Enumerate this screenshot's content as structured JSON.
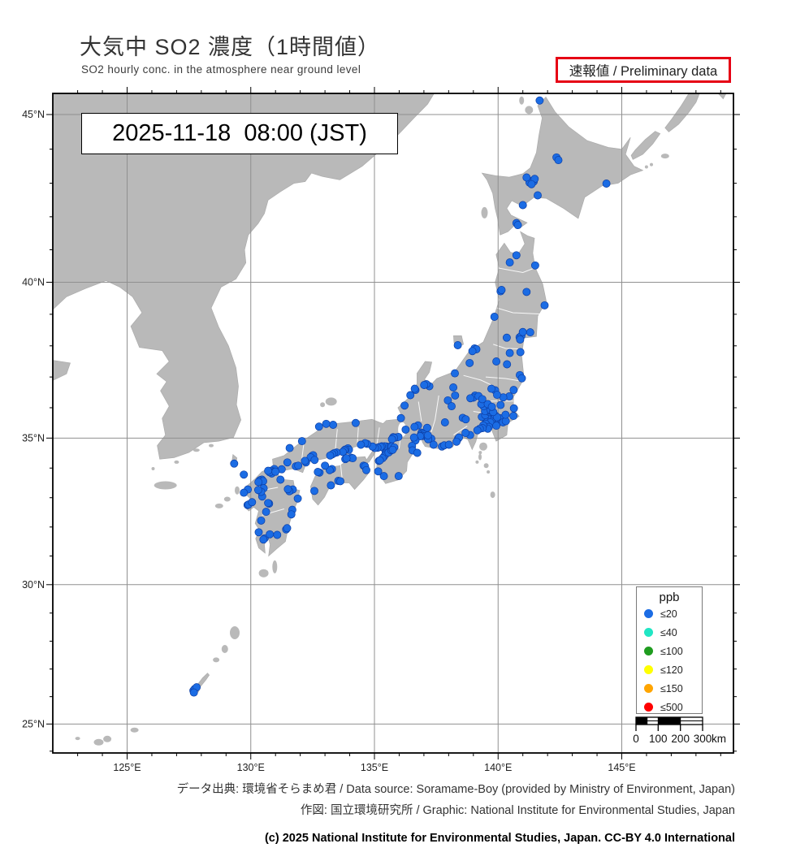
{
  "header": {
    "title_jp": "大気中 SO2 濃度（1時間値）",
    "subtitle_en": "SO2 hourly conc. in the atmosphere near ground level",
    "preliminary_label": "速報値 / Preliminary data"
  },
  "map": {
    "timestamp": "2025-11-18  08:00 (JST)",
    "axes": {
      "lat_ticks": [
        "45°N",
        "40°N",
        "35°N",
        "30°N",
        "25°N"
      ],
      "lat_values": [
        45,
        40,
        35,
        30,
        25
      ],
      "lon_ticks": [
        "125°E",
        "130°E",
        "135°E",
        "140°E",
        "145°E"
      ],
      "lon_values": [
        125,
        130,
        135,
        140,
        145
      ]
    }
  },
  "legend": {
    "title": "ppb",
    "items": [
      {
        "label": "≤20",
        "color": "#1b6ce4"
      },
      {
        "label": "≤40",
        "color": "#20e6c4"
      },
      {
        "label": "≤100",
        "color": "#1f9c1f"
      },
      {
        "label": "≤120",
        "color": "#ffff00"
      },
      {
        "label": "≤150",
        "color": "#ffa500"
      },
      {
        "label": "≤500",
        "color": "#ff0000"
      }
    ]
  },
  "scalebar": {
    "ticks": [
      "0",
      "100",
      "200",
      "300"
    ],
    "unit": "km"
  },
  "footer": {
    "source_line": "データ出典: 環境省そらまめ君 / Data source: Soramame-Boy (provided by Ministry of Environment, Japan)",
    "graphic_line": "作図: 国立環境研究所 / Graphic: National Institute for Environmental Studies, Japan",
    "copyright_line": "(c) 2025 National Institute for Environmental Studies, Japan. CC-BY 4.0 International"
  },
  "chart_data": {
    "type": "scatter",
    "title": "大気中 SO2 濃度（1時間値） / SO2 hourly conc. in the atmosphere near ground level",
    "timestamp": "2025-11-18 08:00 (JST)",
    "units": "ppb",
    "lon_range": [
      122.0,
      149.5
    ],
    "lat_range": [
      24.0,
      45.6
    ],
    "projection": "mercator",
    "legend_bins": [
      {
        "label": "≤20",
        "color": "#1b6ce4"
      },
      {
        "label": "≤40",
        "color": "#20e6c4"
      },
      {
        "label": "≤100",
        "color": "#1f9c1f"
      },
      {
        "label": "≤120",
        "color": "#ffff00"
      },
      {
        "label": "≤150",
        "color": "#ffa500"
      },
      {
        "label": "≤500",
        "color": "#ff0000"
      }
    ],
    "note": "All plotted stations fall in the ≤20 ppb class (blue dots).",
    "stations_lonlat": [
      [
        141.68,
        45.4
      ],
      [
        142.36,
        43.76
      ],
      [
        142.44,
        43.68
      ],
      [
        141.35,
        43.07
      ],
      [
        141.44,
        43.05
      ],
      [
        141.27,
        43.02
      ],
      [
        141.48,
        43.13
      ],
      [
        141.35,
        42.97
      ],
      [
        141.6,
        42.64
      ],
      [
        141.0,
        42.35
      ],
      [
        144.38,
        42.99
      ],
      [
        140.74,
        41.81
      ],
      [
        140.8,
        41.75
      ],
      [
        141.15,
        43.17
      ],
      [
        140.74,
        40.83
      ],
      [
        141.5,
        40.52
      ],
      [
        140.47,
        40.61
      ],
      [
        140.1,
        39.72
      ],
      [
        140.14,
        39.76
      ],
      [
        141.15,
        39.7
      ],
      [
        141.88,
        39.28
      ],
      [
        140.87,
        38.27
      ],
      [
        140.94,
        38.32
      ],
      [
        140.89,
        38.2
      ],
      [
        141.3,
        38.43
      ],
      [
        141.0,
        38.44
      ],
      [
        140.35,
        38.26
      ],
      [
        139.85,
        38.92
      ],
      [
        140.47,
        37.77
      ],
      [
        140.36,
        37.41
      ],
      [
        140.88,
        37.06
      ],
      [
        140.96,
        36.96
      ],
      [
        139.93,
        37.5
      ],
      [
        140.9,
        37.8
      ],
      [
        139.05,
        37.92
      ],
      [
        139.12,
        37.89
      ],
      [
        138.96,
        37.83
      ],
      [
        138.85,
        37.45
      ],
      [
        138.25,
        37.12
      ],
      [
        138.37,
        38.02
      ],
      [
        137.22,
        36.7
      ],
      [
        137.1,
        36.77
      ],
      [
        137.01,
        36.74
      ],
      [
        136.66,
        36.58
      ],
      [
        136.63,
        36.62
      ],
      [
        136.45,
        36.41
      ],
      [
        136.22,
        36.07
      ],
      [
        136.07,
        35.66
      ],
      [
        139.7,
        35.69
      ],
      [
        139.75,
        35.71
      ],
      [
        139.8,
        35.66
      ],
      [
        139.65,
        35.73
      ],
      [
        139.7,
        35.76
      ],
      [
        139.78,
        35.61
      ],
      [
        139.84,
        35.71
      ],
      [
        139.62,
        35.66
      ],
      [
        139.73,
        35.58
      ],
      [
        139.88,
        35.75
      ],
      [
        139.55,
        35.7
      ],
      [
        139.45,
        35.66
      ],
      [
        139.34,
        35.7
      ],
      [
        139.48,
        35.76
      ],
      [
        139.64,
        35.45
      ],
      [
        139.55,
        35.42
      ],
      [
        139.68,
        35.52
      ],
      [
        139.5,
        35.47
      ],
      [
        139.63,
        35.37
      ],
      [
        139.58,
        35.31
      ],
      [
        139.4,
        35.42
      ],
      [
        139.37,
        35.33
      ],
      [
        139.26,
        35.31
      ],
      [
        139.16,
        35.26
      ],
      [
        140.1,
        35.6
      ],
      [
        140.13,
        35.54
      ],
      [
        140.03,
        35.58
      ],
      [
        140.06,
        35.66
      ],
      [
        139.96,
        35.69
      ],
      [
        140.2,
        35.52
      ],
      [
        139.93,
        35.41
      ],
      [
        140.31,
        35.56
      ],
      [
        140.3,
        35.77
      ],
      [
        140.62,
        35.73
      ],
      [
        139.65,
        35.86
      ],
      [
        139.6,
        35.91
      ],
      [
        139.53,
        35.95
      ],
      [
        139.47,
        35.89
      ],
      [
        139.7,
        35.92
      ],
      [
        139.8,
        35.86
      ],
      [
        139.41,
        36.05
      ],
      [
        139.32,
        36.12
      ],
      [
        139.58,
        36.12
      ],
      [
        139.75,
        36.03
      ],
      [
        140.45,
        36.37
      ],
      [
        140.63,
        36.58
      ],
      [
        140.1,
        36.09
      ],
      [
        140.64,
        35.98
      ],
      [
        140.21,
        36.34
      ],
      [
        139.88,
        36.57
      ],
      [
        139.73,
        36.62
      ],
      [
        139.96,
        36.42
      ],
      [
        139.07,
        36.4
      ],
      [
        139.0,
        36.33
      ],
      [
        138.88,
        36.31
      ],
      [
        139.21,
        36.38
      ],
      [
        139.36,
        36.28
      ],
      [
        138.57,
        35.67
      ],
      [
        138.69,
        35.62
      ],
      [
        138.19,
        36.66
      ],
      [
        137.97,
        36.24
      ],
      [
        138.26,
        36.4
      ],
      [
        138.12,
        36.05
      ],
      [
        137.85,
        35.52
      ],
      [
        138.87,
        35.1
      ],
      [
        138.68,
        35.17
      ],
      [
        138.38,
        34.98
      ],
      [
        138.42,
        35.02
      ],
      [
        138.32,
        34.88
      ],
      [
        137.73,
        34.72
      ],
      [
        137.82,
        34.76
      ],
      [
        138.01,
        34.78
      ],
      [
        136.9,
        35.18
      ],
      [
        136.95,
        35.16
      ],
      [
        136.88,
        35.11
      ],
      [
        137.0,
        35.12
      ],
      [
        136.93,
        35.07
      ],
      [
        137.05,
        35.06
      ],
      [
        136.85,
        35.06
      ],
      [
        137.15,
        35.02
      ],
      [
        137.3,
        34.98
      ],
      [
        137.39,
        34.78
      ],
      [
        137.17,
        34.96
      ],
      [
        137.16,
        35.09
      ],
      [
        136.76,
        35.42
      ],
      [
        136.62,
        35.37
      ],
      [
        137.13,
        35.34
      ],
      [
        136.63,
        34.97
      ],
      [
        136.66,
        34.92
      ],
      [
        136.6,
        35.02
      ],
      [
        136.52,
        34.74
      ],
      [
        136.54,
        34.59
      ],
      [
        136.73,
        34.51
      ],
      [
        135.87,
        35.02
      ],
      [
        136.26,
        35.28
      ],
      [
        135.97,
        35.04
      ],
      [
        135.76,
        35.03
      ],
      [
        135.79,
        35.01
      ],
      [
        135.71,
        34.96
      ],
      [
        135.5,
        34.69
      ],
      [
        135.52,
        34.66
      ],
      [
        135.46,
        34.66
      ],
      [
        135.55,
        34.61
      ],
      [
        135.6,
        34.63
      ],
      [
        135.48,
        34.72
      ],
      [
        135.43,
        34.61
      ],
      [
        135.58,
        34.69
      ],
      [
        135.5,
        34.56
      ],
      [
        135.46,
        34.51
      ],
      [
        135.62,
        34.56
      ],
      [
        135.41,
        34.73
      ],
      [
        135.65,
        34.73
      ],
      [
        135.44,
        34.45
      ],
      [
        135.38,
        34.38
      ],
      [
        135.33,
        34.33
      ],
      [
        135.57,
        34.52
      ],
      [
        135.68,
        34.6
      ],
      [
        135.7,
        34.72
      ],
      [
        135.19,
        34.7
      ],
      [
        135.3,
        34.73
      ],
      [
        135.25,
        34.71
      ],
      [
        135.12,
        34.68
      ],
      [
        135.02,
        34.67
      ],
      [
        134.92,
        34.72
      ],
      [
        134.7,
        34.81
      ],
      [
        134.62,
        34.83
      ],
      [
        134.45,
        34.78
      ],
      [
        135.8,
        34.69
      ],
      [
        135.74,
        34.61
      ],
      [
        135.18,
        34.24
      ],
      [
        135.22,
        34.26
      ],
      [
        135.38,
        33.73
      ],
      [
        135.98,
        33.73
      ],
      [
        135.15,
        33.89
      ],
      [
        134.24,
        35.5
      ],
      [
        133.33,
        35.44
      ],
      [
        133.05,
        35.47
      ],
      [
        132.76,
        35.38
      ],
      [
        132.07,
        34.9
      ],
      [
        133.93,
        34.66
      ],
      [
        133.97,
        34.61
      ],
      [
        133.82,
        34.62
      ],
      [
        133.78,
        34.59
      ],
      [
        133.72,
        34.54
      ],
      [
        133.47,
        34.52
      ],
      [
        133.37,
        34.5
      ],
      [
        133.3,
        34.46
      ],
      [
        133.21,
        34.42
      ],
      [
        132.47,
        34.4
      ],
      [
        132.52,
        34.43
      ],
      [
        132.42,
        34.36
      ],
      [
        132.58,
        34.27
      ],
      [
        132.23,
        34.19
      ],
      [
        132.19,
        34.24
      ],
      [
        131.82,
        34.06
      ],
      [
        131.92,
        34.08
      ],
      [
        131.25,
        33.96
      ],
      [
        131.48,
        34.19
      ],
      [
        130.95,
        33.97
      ],
      [
        131.57,
        34.67
      ],
      [
        134.05,
        34.35
      ],
      [
        134.12,
        34.33
      ],
      [
        133.82,
        34.3
      ],
      [
        133.87,
        34.33
      ],
      [
        133.28,
        33.97
      ],
      [
        133.19,
        33.93
      ],
      [
        133.0,
        34.08
      ],
      [
        132.78,
        33.85
      ],
      [
        132.71,
        33.87
      ],
      [
        132.57,
        33.23
      ],
      [
        133.54,
        33.57
      ],
      [
        133.62,
        33.56
      ],
      [
        134.56,
        34.08
      ],
      [
        134.62,
        34.06
      ],
      [
        134.67,
        33.93
      ],
      [
        133.24,
        33.42
      ],
      [
        130.88,
        33.89
      ],
      [
        130.82,
        33.91
      ],
      [
        130.95,
        33.88
      ],
      [
        130.85,
        33.82
      ],
      [
        130.76,
        33.86
      ],
      [
        131.0,
        33.88
      ],
      [
        130.7,
        33.91
      ],
      [
        130.4,
        33.6
      ],
      [
        130.45,
        33.61
      ],
      [
        130.36,
        33.58
      ],
      [
        130.43,
        33.53
      ],
      [
        130.5,
        33.56
      ],
      [
        130.31,
        33.53
      ],
      [
        130.52,
        33.32
      ],
      [
        130.46,
        33.04
      ],
      [
        130.42,
        33.2
      ],
      [
        130.3,
        33.26
      ],
      [
        129.88,
        33.28
      ],
      [
        129.72,
        33.17
      ],
      [
        129.87,
        32.75
      ],
      [
        129.91,
        32.77
      ],
      [
        130.05,
        32.85
      ],
      [
        130.74,
        32.8
      ],
      [
        130.7,
        32.82
      ],
      [
        130.62,
        32.52
      ],
      [
        130.42,
        32.22
      ],
      [
        131.62,
        33.25
      ],
      [
        131.7,
        33.28
      ],
      [
        131.56,
        33.22
      ],
      [
        131.5,
        33.29
      ],
      [
        131.2,
        33.61
      ],
      [
        131.9,
        32.97
      ],
      [
        131.68,
        32.59
      ],
      [
        131.64,
        32.43
      ],
      [
        131.43,
        31.92
      ],
      [
        131.47,
        31.96
      ],
      [
        131.07,
        31.73
      ],
      [
        130.56,
        31.61
      ],
      [
        130.51,
        31.57
      ],
      [
        130.77,
        31.75
      ],
      [
        130.32,
        31.82
      ],
      [
        129.33,
        34.15
      ],
      [
        129.72,
        33.78
      ],
      [
        127.68,
        26.22
      ],
      [
        127.73,
        26.28
      ],
      [
        127.81,
        26.34
      ],
      [
        127.7,
        26.15
      ]
    ]
  }
}
